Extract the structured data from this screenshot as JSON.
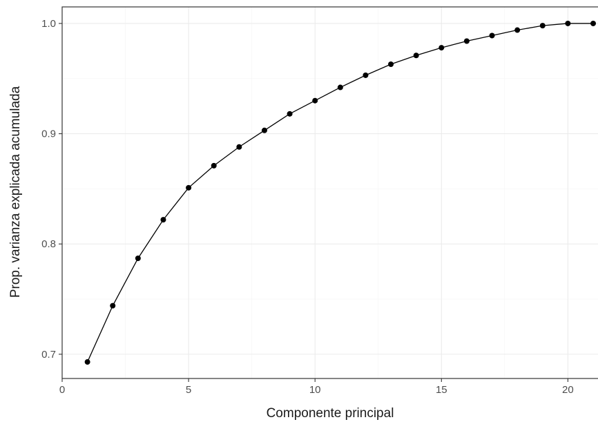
{
  "chart_data": {
    "type": "line",
    "title": "",
    "xlabel": "Componente principal",
    "ylabel": "Prop. varianza explicada acumulada",
    "x": [
      1,
      2,
      3,
      4,
      5,
      6,
      7,
      8,
      9,
      10,
      11,
      12,
      13,
      14,
      15,
      16,
      17,
      18,
      19,
      20,
      21
    ],
    "series": [
      {
        "values": [
          0.693,
          0.744,
          0.787,
          0.822,
          0.851,
          0.871,
          0.888,
          0.903,
          0.918,
          0.93,
          0.942,
          0.953,
          0.963,
          0.971,
          0.978,
          0.984,
          0.989,
          0.994,
          0.998,
          1.0,
          1.0
        ]
      }
    ],
    "xlim": [
      0,
      21.3
    ],
    "ylim": [
      0.678,
      1.015
    ],
    "x_ticks": [
      0,
      5,
      10,
      15,
      20
    ],
    "x_tick_labels": [
      "0",
      "5",
      "10",
      "15",
      "20"
    ],
    "y_ticks": [
      0.7,
      0.8,
      0.9,
      1.0
    ],
    "y_tick_labels": [
      "0.7",
      "0.8",
      "0.9",
      "1.0"
    ],
    "grid": true,
    "legend": "none",
    "colors": {
      "line": "#000000",
      "point": "#000000",
      "panel_border": "#333333",
      "grid": "#ebebeb"
    }
  }
}
